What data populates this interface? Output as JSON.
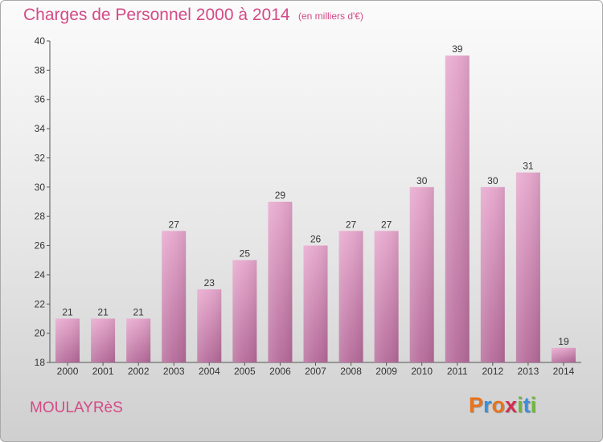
{
  "header": {
    "title": "Charges de Personnel 2000 à 2014",
    "subtitle": "(en milliers d'€)"
  },
  "footer": {
    "commune": "MOULAYRèS",
    "brand_letters": [
      "P",
      "r",
      "o",
      "x",
      "i",
      "t",
      "i"
    ],
    "brand_colors": [
      "#e8731c",
      "#3b8fd6",
      "#e8731c",
      "#d12f4e",
      "#6fb83a",
      "#3b8fd6",
      "#6fb83a"
    ]
  },
  "colors": {
    "bar_top": "#e6a6cc",
    "bar_bottom": "#b56a99",
    "title": "#d44a86",
    "axis": "#555555"
  },
  "chart_data": {
    "type": "bar",
    "categories": [
      "2000",
      "2001",
      "2002",
      "2003",
      "2004",
      "2005",
      "2006",
      "2007",
      "2008",
      "2009",
      "2010",
      "2011",
      "2012",
      "2013",
      "2014"
    ],
    "values": [
      21,
      21,
      21,
      27,
      23,
      25,
      29,
      26,
      27,
      27,
      30,
      39,
      30,
      31,
      19
    ],
    "ylim": [
      18,
      40
    ],
    "yticks": [
      18,
      20,
      22,
      24,
      26,
      28,
      30,
      32,
      34,
      36,
      38,
      40
    ],
    "grid": false,
    "legend": "none"
  }
}
